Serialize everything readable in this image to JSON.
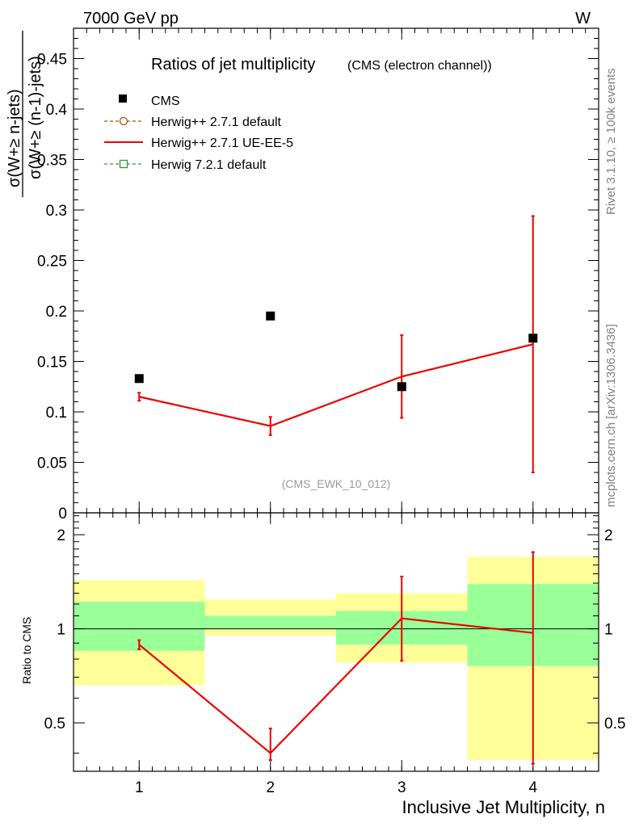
{
  "header": {
    "energy_process": "7000 GeV pp",
    "boson": "W"
  },
  "side_labels": {
    "rivet": "Rivet 3.1.10, ≥ 100k events",
    "mcplots": "mcplots.cern.ch [arXiv:1306.3436]"
  },
  "colors": {
    "cms": "#000000",
    "herwig_default": "#a05a00",
    "herwig_ue": "#ee0000",
    "herwig_72": "#339933",
    "band_inner": "#99ff99",
    "band_outer": "#ffff99"
  },
  "chart_data": [
    {
      "type": "scatter",
      "title": "Ratios of jet multiplicity",
      "subtitle": "(CMS (electron channel))",
      "ylabel_numerator": "σ(W+≥ n-jets)",
      "ylabel_denominator": "σ(W+≥ (n-1)-jets)",
      "watermark": "(CMS_EWK_10_012)",
      "xlim": [
        0.5,
        4.5
      ],
      "ylim": [
        0,
        0.48
      ],
      "yticks": [
        0,
        0.05,
        0.1,
        0.15,
        0.2,
        0.25,
        0.3,
        0.35,
        0.4,
        0.45
      ],
      "ytick_labels": [
        "0",
        "0.05",
        "0.1",
        "0.15",
        "0.2",
        "0.25",
        "0.3",
        "0.35",
        "0.4",
        "0.45"
      ],
      "legend": {
        "placement": "top-left",
        "entries": [
          {
            "label": "CMS",
            "style": "square-marker",
            "color": "#000000"
          },
          {
            "label": "Herwig++ 2.7.1 default",
            "style": "dashed-circle",
            "color": "#a05a00"
          },
          {
            "label": "Herwig++ 2.7.1 UE-EE-5",
            "style": "solid-line",
            "color": "#ee0000"
          },
          {
            "label": "Herwig 7.2.1 default",
            "style": "dashed-square",
            "color": "#339933"
          }
        ]
      },
      "series": [
        {
          "name": "CMS",
          "x": [
            1,
            2,
            3,
            4
          ],
          "y": [
            0.133,
            0.195,
            0.125,
            0.173
          ]
        },
        {
          "name": "Herwig++ 2.7.1 UE-EE-5",
          "x": [
            1,
            2,
            3,
            4
          ],
          "y": [
            0.115,
            0.086,
            0.135,
            0.167
          ],
          "yerr_low": [
            0.111,
            0.077,
            0.094,
            0.04
          ],
          "yerr_high": [
            0.119,
            0.095,
            0.176,
            0.294
          ]
        }
      ]
    },
    {
      "type": "line",
      "ylabel": "Ratio to CMS",
      "xlabel": "Inclusive Jet Multiplicity, n",
      "xlim": [
        0.5,
        4.5
      ],
      "ylim": [
        0.35,
        2.35
      ],
      "yscale": "log",
      "xticks": [
        1,
        2,
        3,
        4
      ],
      "xtick_labels": [
        "1",
        "2",
        "3",
        "4"
      ],
      "yticks": [
        0.5,
        1,
        2
      ],
      "ytick_labels": [
        "0.5",
        "1",
        "2"
      ],
      "reference_line": 1,
      "bands": [
        {
          "x_lo": 0.5,
          "x_hi": 1.5,
          "inner": [
            0.85,
            1.22
          ],
          "outer": [
            0.66,
            1.43
          ]
        },
        {
          "x_lo": 1.5,
          "x_hi": 2.5,
          "inner": [
            1.0,
            1.1
          ],
          "outer": [
            0.95,
            1.24
          ]
        },
        {
          "x_lo": 2.5,
          "x_hi": 3.5,
          "inner": [
            0.89,
            1.14
          ],
          "outer": [
            0.78,
            1.3
          ]
        },
        {
          "x_lo": 3.5,
          "x_hi": 4.5,
          "inner": [
            0.76,
            1.39
          ],
          "outer": [
            0.38,
            1.7
          ]
        }
      ],
      "series": [
        {
          "name": "Herwig++ 2.7.1 UE-EE-5",
          "x": [
            1,
            2,
            3,
            4
          ],
          "y": [
            0.89,
            0.4,
            1.08,
            0.97
          ],
          "yerr_low": [
            0.86,
            0.38,
            0.79,
            0.37
          ],
          "yerr_high": [
            0.92,
            0.48,
            1.47,
            1.76
          ]
        }
      ]
    }
  ]
}
